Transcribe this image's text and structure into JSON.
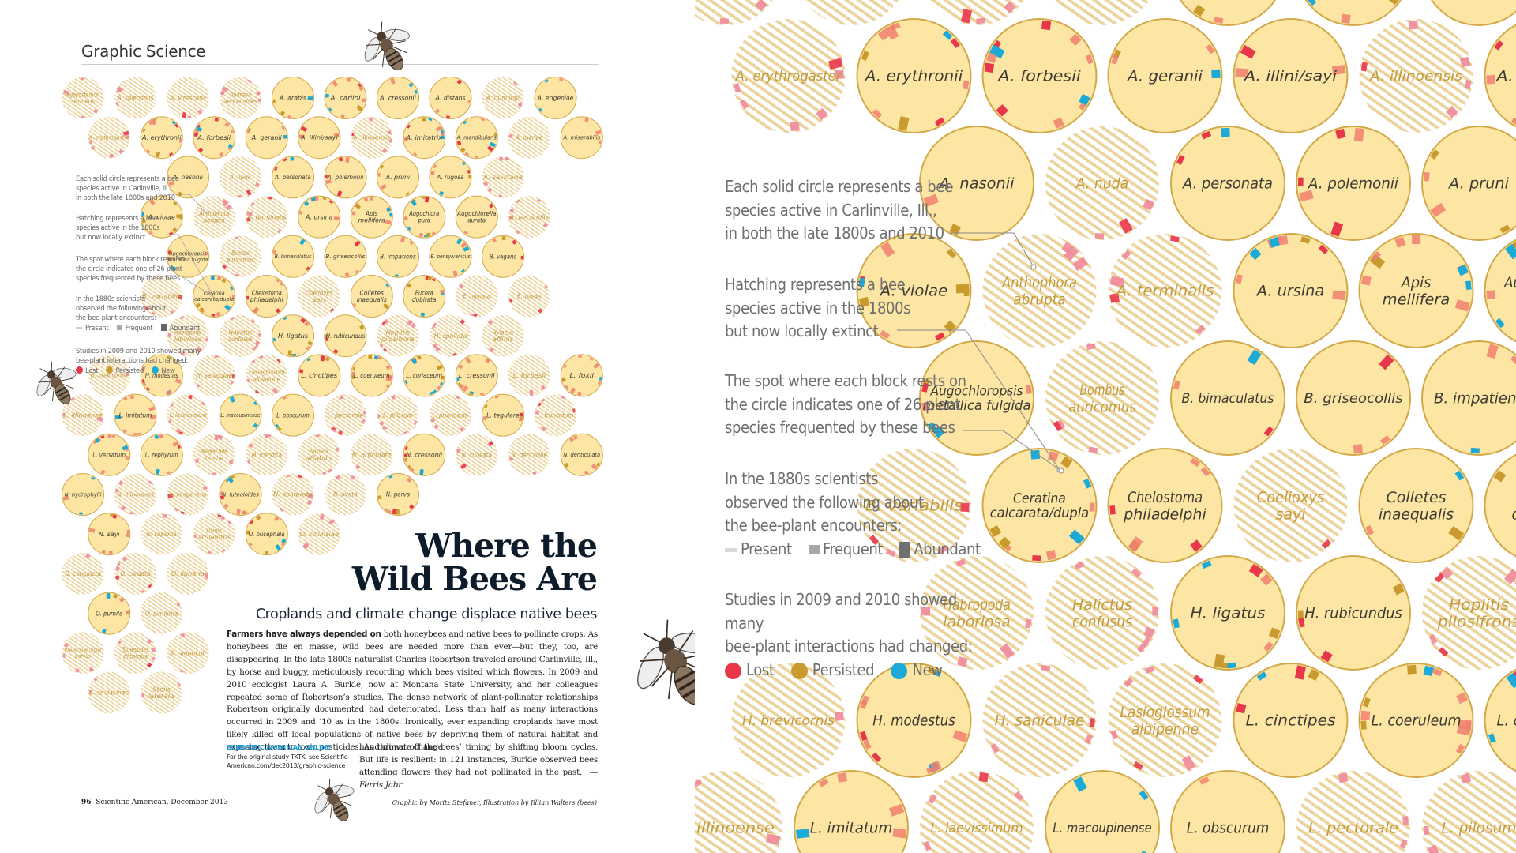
{
  "page": {
    "section_title": "Graphic Science",
    "headline_line1": "Where the",
    "headline_line2": "Wild Bees Are",
    "subhead": "Croplands and climate change displace native bees",
    "body_lead": "Farmers have always depended on",
    "body_text": " both honeybees and native bees to pollinate crops. As honeybees die en masse, wild bees are needed more than ever—but they, too, are disappearing. In the late 1800s naturalist Charles Robertson traveled around Carlinville, Ill., by horse and buggy, meticulously recording which bees visited which flowers. In 2009 and 2010 ecologist Laura A. Burkle, now at Montana State University, and her colleagues repeated some of Robertson’s studies. The dense network of plant-pollinator relationships Robertson originally documented had deteriorated. Less than half as many interactions occurred in 2009 and ‘10 as in the 1800s. Ironically, ever expanding croplands have most likely killed off local populations of native bees by depriving them of natural habitat and exposing them to toxic pesticides. And climate change",
    "body_cont": "has thrown off the bees’ timing by shifting bloom cycles. But life is resilient: in 121 instances, Burkle observed bees attending flowers they had not pollinated in the past.",
    "byline": "—Ferris Jabr",
    "online_title": "SCIENTIFIC AMERICAN ONLINE",
    "online_text": "For the original study TKTK, see Scientific-American.com/dec2013/graphic-science",
    "folio_number": "96",
    "folio_text": "Scientific American, December 2013",
    "credit": "Graphic by Moritz Stefaner, Illustration by Jillian Walters (bees)"
  },
  "legend": {
    "solid": "Each solid circle represents a bee species active in Carlinville, Ill., in both the late 1800s and 2010",
    "solid_lines": [
      "Each solid circle represents a bee",
      "species active in Carlinville, Ill.,",
      "in both the late 1800s and 2010"
    ],
    "hatch_lines": [
      "Hatching represents a bee",
      "species active in the 1800s",
      "but now locally extinct"
    ],
    "spot_lines": [
      "The spot where each block rests on",
      "the circle indicates one of 26 plant",
      "species frequented by these bees"
    ],
    "observed_lines": [
      "In the 1880s scientists",
      "observed the following about",
      "the bee-plant encounters:"
    ],
    "present": "Present",
    "frequent": "Frequent",
    "abundant": "Abundant",
    "studies_lines": [
      "Studies in 2009 and 2010 showed many",
      "bee-plant interactions had changed:"
    ],
    "lost": "Lost",
    "persisted": "Persisted",
    "new": "New"
  },
  "colors": {
    "lost": "#e8364a",
    "persisted": "#c99a2e",
    "new": "#1eaad6",
    "lost_extinct": "#f08a9a",
    "circle_fill": "#fde5a3",
    "circle_stroke": "#d3a847",
    "hatch": "#ecd39c",
    "label_solid": "#3d3a33",
    "label_hatched": "#c19b3c"
  },
  "chart_data": {
    "type": "table",
    "title": "Where the Wild Bees Are",
    "plant_species_count": 26,
    "rows": [
      {
        "offset": 0,
        "species": [
          [
            "Agapostemon\nsericeus",
            0
          ],
          [
            "A. splendens",
            0
          ],
          [
            "A. virescens",
            0
          ],
          [
            "Andrena\nandrenoides",
            0
          ],
          [
            "A. arabis",
            1
          ],
          [
            "A. carlini",
            1
          ],
          [
            "A. cressonii",
            1
          ],
          [
            "A. distans",
            1
          ],
          [
            "A. dunningi",
            0
          ],
          [
            "A. erigeniae",
            1
          ]
        ]
      },
      {
        "offset": 1,
        "species": [
          [
            "A. erythrogaster",
            0
          ],
          [
            "A. erythronii",
            1
          ],
          [
            "A. forbesii",
            1
          ],
          [
            "A. geranii",
            1
          ],
          [
            "A. illini/sayi",
            1
          ],
          [
            "A. illinoensis",
            0
          ],
          [
            "A. imitatrix",
            1
          ],
          [
            "A. mandibularis",
            1
          ],
          [
            "A. mariae",
            0
          ],
          [
            "A. miserabilis",
            1
          ]
        ]
      },
      {
        "offset": 2,
        "skip": 1,
        "species": [
          [
            "A. nasonii",
            1
          ],
          [
            "A. nuda",
            0
          ],
          [
            "A. personata",
            1
          ],
          [
            "A. polemonii",
            1
          ],
          [
            "A. pruni",
            1
          ],
          [
            "A. rugosa",
            1
          ],
          [
            "A. salictaria",
            0
          ]
        ]
      },
      {
        "offset": 1,
        "skip": 1,
        "species": [
          [
            "A. violae",
            1
          ],
          [
            "Anthophora\nabrupta",
            0
          ],
          [
            "A. terminalis",
            0
          ],
          [
            "A. ursina",
            1
          ],
          [
            "Apis\nmellifera",
            1
          ],
          [
            "Augochlora\npura",
            1
          ],
          [
            "Augochlorella\naurata",
            1
          ],
          [
            "A. persimilis",
            0
          ]
        ]
      },
      {
        "offset": 2,
        "skip": 1,
        "species": [
          [
            "Augochloropsis\nmetallica fulgida",
            1
          ],
          [
            "Bombus\nauricomus",
            0
          ],
          [
            "B. bimaculatus",
            1
          ],
          [
            "B. griseocollis",
            1
          ],
          [
            "B. impatiens",
            1
          ],
          [
            "B. pensylvanicus",
            1
          ],
          [
            "B. vagans",
            1
          ]
        ]
      },
      {
        "offset": 1,
        "skip": 1,
        "species": [
          [
            "B. variabilis",
            0
          ],
          [
            "Ceratina\ncalcarata/dupla",
            1
          ],
          [
            "Chelostoma\nphiladelphi",
            1
          ],
          [
            "Coelioxys\nsayi",
            0
          ],
          [
            "Colletes\ninaequalis",
            1
          ],
          [
            "Eucera\ndubitata",
            1
          ],
          [
            "E. hamata",
            0
          ],
          [
            "E. rosae",
            0
          ]
        ]
      },
      {
        "offset": 2,
        "skip": 1,
        "species": [
          [
            "Habropoda\nlaboriosa",
            0
          ],
          [
            "Halictus\nconfusus",
            0
          ],
          [
            "H. ligatus",
            1
          ],
          [
            "H. rubicundus",
            1
          ],
          [
            "Hoplitis\npilosifrons",
            0
          ],
          [
            "H. spoliata",
            0
          ],
          [
            "Hylaeus\naffinis",
            0
          ]
        ]
      },
      {
        "offset": 1,
        "species": [
          [
            "H. brevicornis",
            0
          ],
          [
            "H. modestus",
            1
          ],
          [
            "H. saniculae",
            0
          ],
          [
            "Lasioglossum\nalbipenne",
            0
          ],
          [
            "L. cinctipes",
            1
          ],
          [
            "L. coeruleum",
            1
          ],
          [
            "L. coriaceum",
            1
          ],
          [
            "L. cressonii",
            1
          ],
          [
            "L. forbesii",
            0
          ],
          [
            "L. foxii",
            1
          ]
        ]
      },
      {
        "offset": 0,
        "species": [
          [
            "L. illinoense",
            0
          ],
          [
            "L. imitatum",
            1
          ],
          [
            "L. laevissimum",
            0
          ],
          [
            "L. macoupinense",
            1
          ],
          [
            "L. obscurum",
            1
          ],
          [
            "L. pectorale",
            0
          ],
          [
            "L. pilosum",
            0
          ],
          [
            "L. pruinosum",
            0
          ],
          [
            "L. tegulare",
            1
          ],
          [
            "L. truncatum",
            0
          ]
        ]
      },
      {
        "offset": 1,
        "species": [
          [
            "L. versatum",
            1
          ],
          [
            "L. zephyrum",
            1
          ],
          [
            "Megachile\nbrevis",
            0
          ],
          [
            "M. mendica",
            0
          ],
          [
            "Nomada\naffabilis",
            0
          ],
          [
            "N. articulata",
            0
          ],
          [
            "N. cressonii",
            1
          ],
          [
            "N. cuneata",
            0
          ],
          [
            "N. dentariae",
            0
          ],
          [
            "N. denticulata",
            1
          ]
        ]
      },
      {
        "offset": 0,
        "species": [
          [
            "N. hydrophylli",
            1
          ],
          [
            "N. illinoensis",
            0
          ],
          [
            "N. integerrima",
            0
          ],
          [
            "N. luteoloides",
            1
          ],
          [
            "N. obliterata",
            0
          ],
          [
            "N. ovata",
            0
          ],
          [
            "N. parva",
            1
          ]
        ]
      },
      {
        "offset": 1,
        "species": [
          [
            "N. sayi",
            1
          ],
          [
            "N. superba",
            0
          ],
          [
            "Osmia\natriventris",
            0
          ],
          [
            "O. bucephala",
            1
          ],
          [
            "O. collinsiae",
            0
          ]
        ]
      },
      {
        "offset": 0,
        "species": [
          [
            "O. conjuncta",
            0
          ],
          [
            "O. cordata",
            0
          ],
          [
            "O. lignaria",
            0
          ]
        ]
      },
      {
        "offset": 1,
        "species": [
          [
            "O. pumila",
            1
          ],
          [
            "O. similima",
            0
          ]
        ]
      },
      {
        "offset": 0,
        "species": [
          [
            "Pseudopanurgus\nparvus",
            0
          ],
          [
            "Sphecodes\ndichrous",
            0
          ],
          [
            "S. ranunculi",
            0
          ]
        ]
      },
      {
        "offset": 1,
        "species": [
          [
            "S. smilacinae",
            0
          ],
          [
            "Stelis\nlateralis",
            0
          ]
        ]
      }
    ]
  }
}
